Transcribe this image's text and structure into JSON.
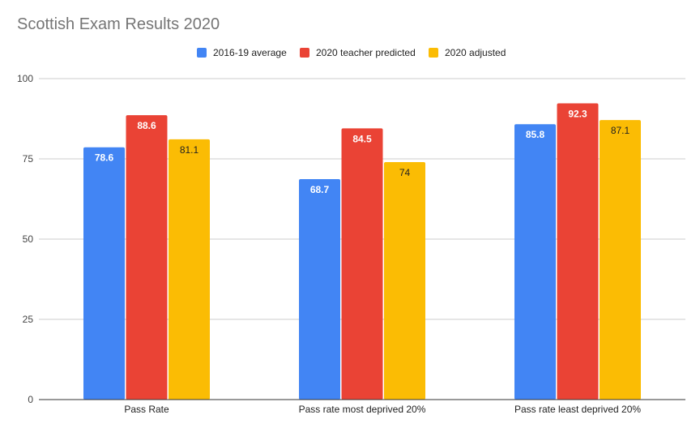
{
  "chart_data": {
    "type": "bar",
    "title": "Scottish Exam Results 2020",
    "xlabel": "",
    "ylabel": "",
    "categories": [
      "Pass Rate",
      "Pass rate most deprived 20%",
      "Pass rate least deprived 20%"
    ],
    "series": [
      {
        "name": "2016-19 average",
        "values": [
          78.6,
          68.7,
          85.8
        ],
        "color": "#4285f4",
        "label_color": "#ffffff"
      },
      {
        "name": "2020 teacher predicted",
        "values": [
          88.6,
          84.5,
          92.3
        ],
        "color": "#ea4335",
        "label_color": "#ffffff"
      },
      {
        "name": "2020 adjusted",
        "values": [
          81.1,
          74,
          87.1
        ],
        "color": "#fbbc04",
        "label_color": "#222222"
      }
    ],
    "ylim": [
      0,
      100
    ],
    "yticks": [
      0,
      25,
      50,
      75,
      100
    ],
    "grid": true,
    "legend_position": "top"
  }
}
